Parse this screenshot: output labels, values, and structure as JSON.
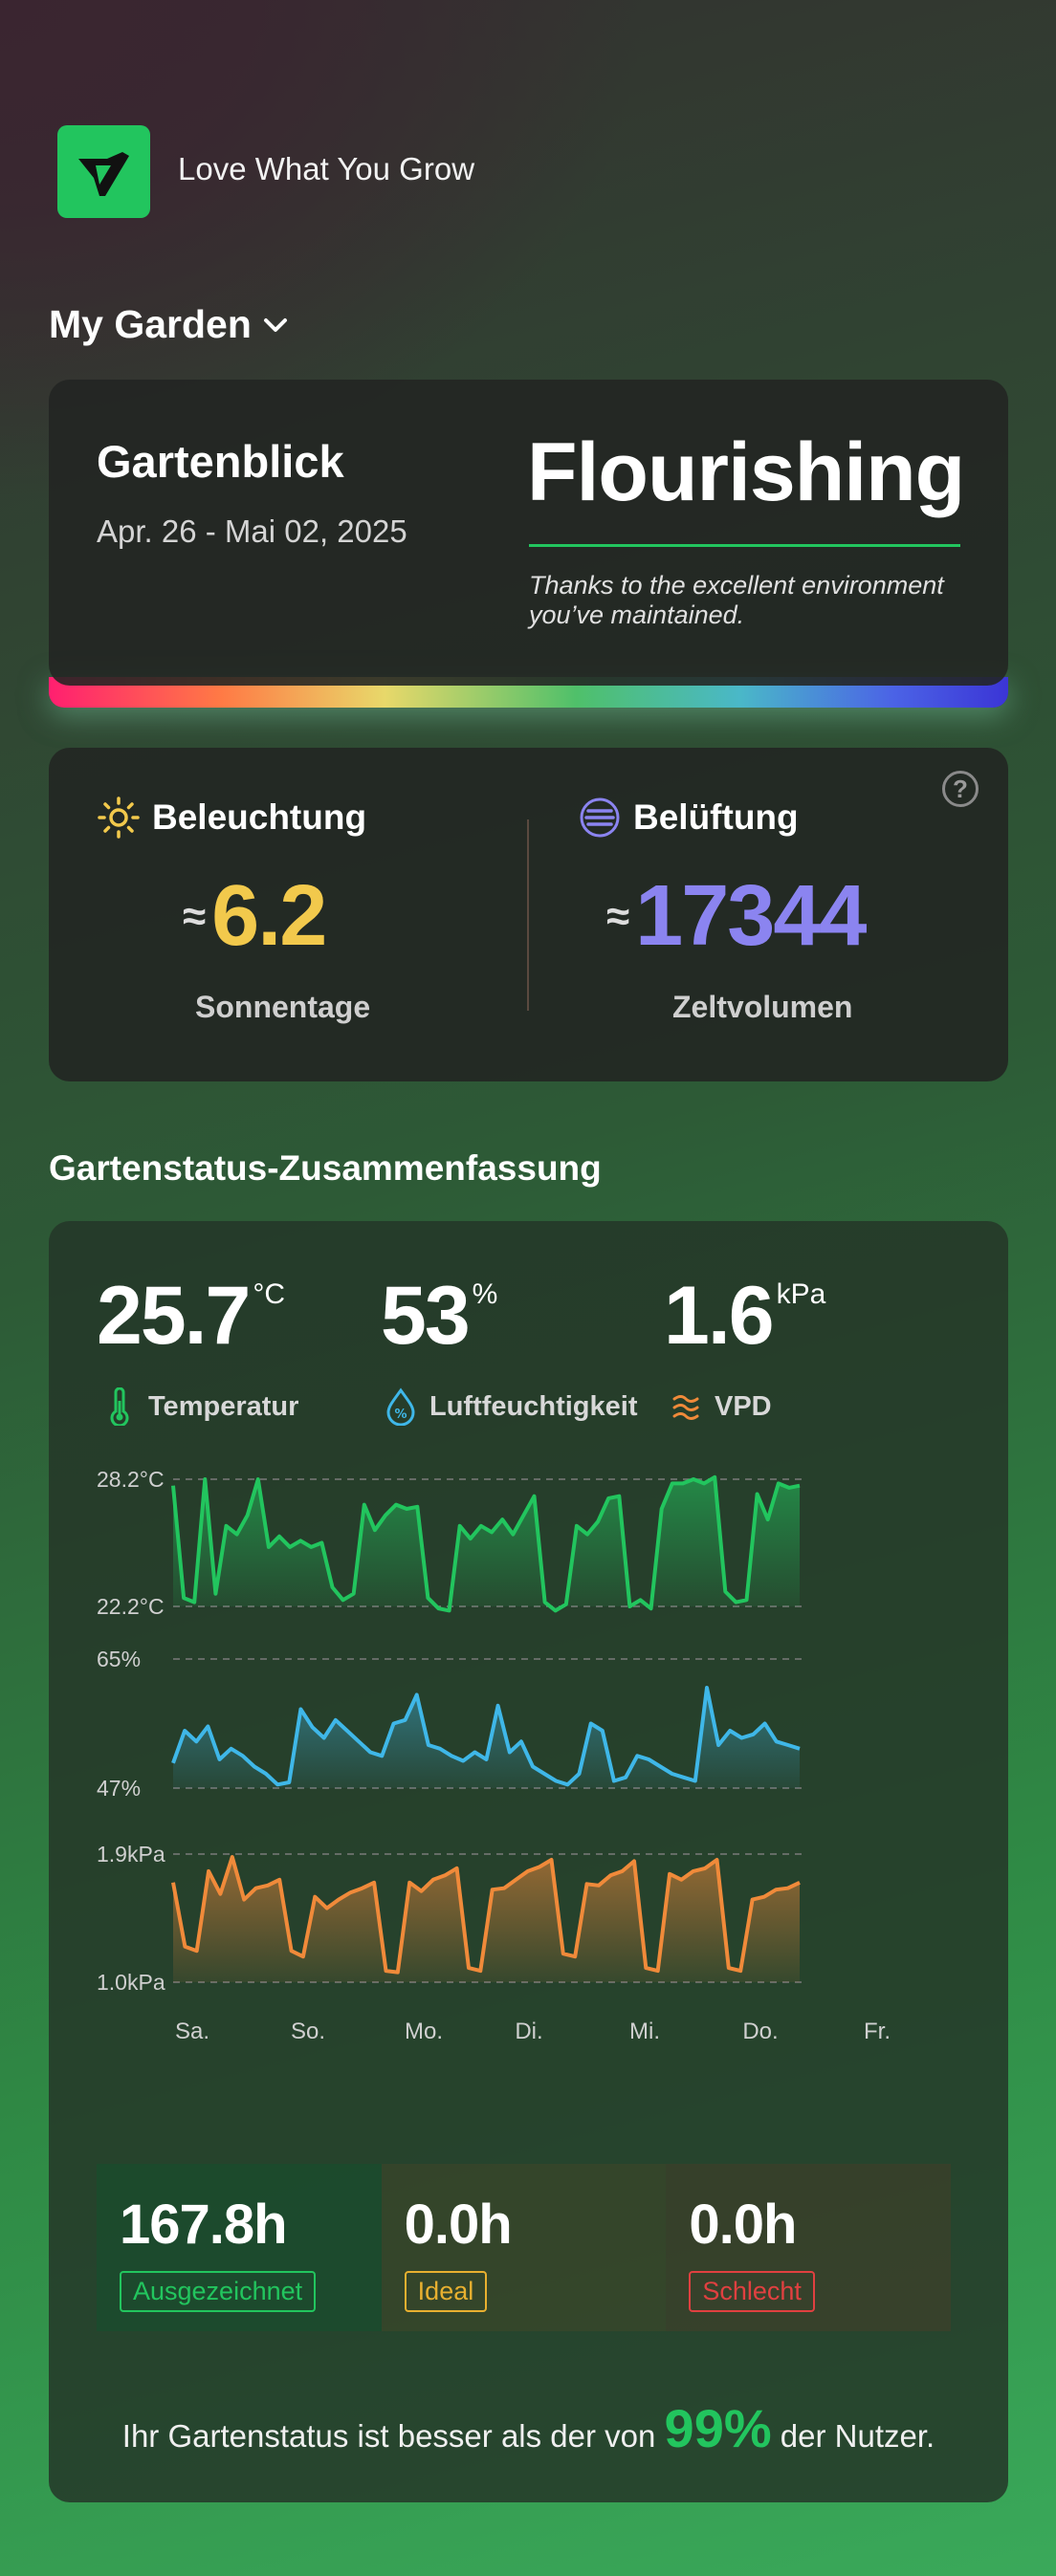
{
  "brand": {
    "tagline": "Love What You Grow",
    "logo_icon": "leaf-v-logo",
    "accent": "#22c55e"
  },
  "nav": {
    "title": "My Garden",
    "chevron_icon": "chevron-down-icon"
  },
  "hero": {
    "title": "Gartenblick",
    "date_range": "Apr. 26 - Mai 02, 2025",
    "status": "Flourishing",
    "note": "Thanks to the excellent environment you’ve maintained."
  },
  "environment": {
    "help_label": "?",
    "lighting": {
      "label": "Beleuchtung",
      "approx": "≈",
      "value": "6.2",
      "unit": "Sonnentage",
      "color": "#f2c94c",
      "icon": "sun-icon"
    },
    "ventilation": {
      "label": "Belüftung",
      "approx": "≈",
      "value": "17344",
      "unit": "Zeltvolumen",
      "color": "#8b84f0",
      "icon": "fan-icon"
    }
  },
  "summary": {
    "title": "Gartenstatus-Zusammenfassung",
    "metrics": [
      {
        "value": "25.7",
        "unit": "°C",
        "label": "Temperatur",
        "icon": "thermometer-icon",
        "color": "#22c55e"
      },
      {
        "value": "53",
        "unit": "%",
        "label": "Luftfeuchtigkeit",
        "icon": "humidity-icon",
        "color": "#3fb7e8"
      },
      {
        "value": "1.6",
        "unit": "kPa",
        "label": "VPD",
        "icon": "vpd-waves-icon",
        "color": "#f08a3a"
      }
    ],
    "stats": [
      {
        "value": "167.8h",
        "badge": "Ausgezeichnet",
        "color": "#22c55e"
      },
      {
        "value": "0.0h",
        "badge": "Ideal",
        "color": "#e8b030"
      },
      {
        "value": "0.0h",
        "badge": "Schlecht",
        "color": "#e04040"
      }
    ],
    "footer": {
      "prefix": "Ihr Gartenstatus ist besser als der von ",
      "percent": "99%",
      "suffix": " der Nutzer."
    }
  },
  "chart_data": [
    {
      "type": "area",
      "series": [
        {
          "name": "Temperatur",
          "color": "#22c55e",
          "values": [
            27.9,
            22.6,
            22.4,
            28.2,
            22.8,
            26.0,
            25.6,
            26.5,
            28.2,
            25.0,
            25.5,
            25.0,
            25.3,
            25.0,
            25.2,
            23.1,
            22.5,
            22.8,
            27.0,
            25.8,
            26.5,
            27.0,
            26.8,
            26.9,
            22.6,
            22.1,
            22.0,
            26.0,
            25.4,
            26.0,
            25.7,
            26.3,
            25.6,
            26.5,
            27.4,
            22.4,
            22.0,
            22.3,
            26.0,
            25.6,
            26.2,
            27.3,
            27.4,
            22.2,
            22.5,
            22.1,
            26.8,
            28.0,
            28.0,
            28.2,
            28.0,
            28.3,
            22.9,
            22.4,
            22.5,
            27.5,
            26.3,
            28.0,
            27.8,
            27.9
          ]
        }
      ],
      "ylim": [
        22.2,
        28.2
      ],
      "ytick_labels": [
        "28.2°C",
        "22.2°C"
      ]
    },
    {
      "type": "area",
      "series": [
        {
          "name": "Luftfeuchtigkeit",
          "color": "#3fb7e8",
          "values": [
            50.5,
            55.0,
            53.5,
            55.6,
            51.0,
            52.5,
            51.5,
            50.0,
            49.0,
            47.5,
            47.8,
            58.0,
            55.5,
            54.0,
            56.5,
            55.0,
            53.5,
            52.0,
            51.5,
            56.0,
            56.5,
            60.0,
            53.0,
            52.5,
            51.5,
            50.8,
            52.0,
            51.0,
            58.5,
            52.0,
            53.5,
            50.0,
            49.0,
            48.0,
            47.5,
            49.0,
            56.0,
            55.0,
            48.0,
            48.5,
            51.5,
            51.0,
            50.0,
            49.0,
            48.5,
            48.0,
            61.0,
            53.0,
            55.0,
            54.0,
            54.5,
            56.0,
            53.5,
            53.0,
            52.5
          ]
        }
      ],
      "ylim": [
        47,
        65
      ],
      "ytick_labels": [
        "65%",
        "47%"
      ]
    },
    {
      "type": "area",
      "series": [
        {
          "name": "VPD",
          "color": "#f08a3a",
          "values": [
            1.7,
            1.25,
            1.22,
            1.78,
            1.62,
            1.88,
            1.58,
            1.66,
            1.68,
            1.72,
            1.22,
            1.18,
            1.6,
            1.52,
            1.58,
            1.63,
            1.66,
            1.7,
            1.08,
            1.07,
            1.7,
            1.64,
            1.72,
            1.75,
            1.8,
            1.1,
            1.08,
            1.65,
            1.66,
            1.72,
            1.78,
            1.81,
            1.86,
            1.2,
            1.18,
            1.69,
            1.68,
            1.75,
            1.78,
            1.85,
            1.1,
            1.08,
            1.76,
            1.72,
            1.78,
            1.8,
            1.86,
            1.1,
            1.08,
            1.58,
            1.6,
            1.65,
            1.66,
            1.7
          ]
        }
      ],
      "ylim": [
        1.0,
        1.9
      ],
      "ytick_labels": [
        "1.9kPa",
        "1.0kPa"
      ]
    },
    {
      "type": "line",
      "role": "shared-x-axis",
      "categories": [
        "Sa.",
        "So.",
        "Mo.",
        "Di.",
        "Mi.",
        "Do.",
        "Fr."
      ]
    }
  ]
}
